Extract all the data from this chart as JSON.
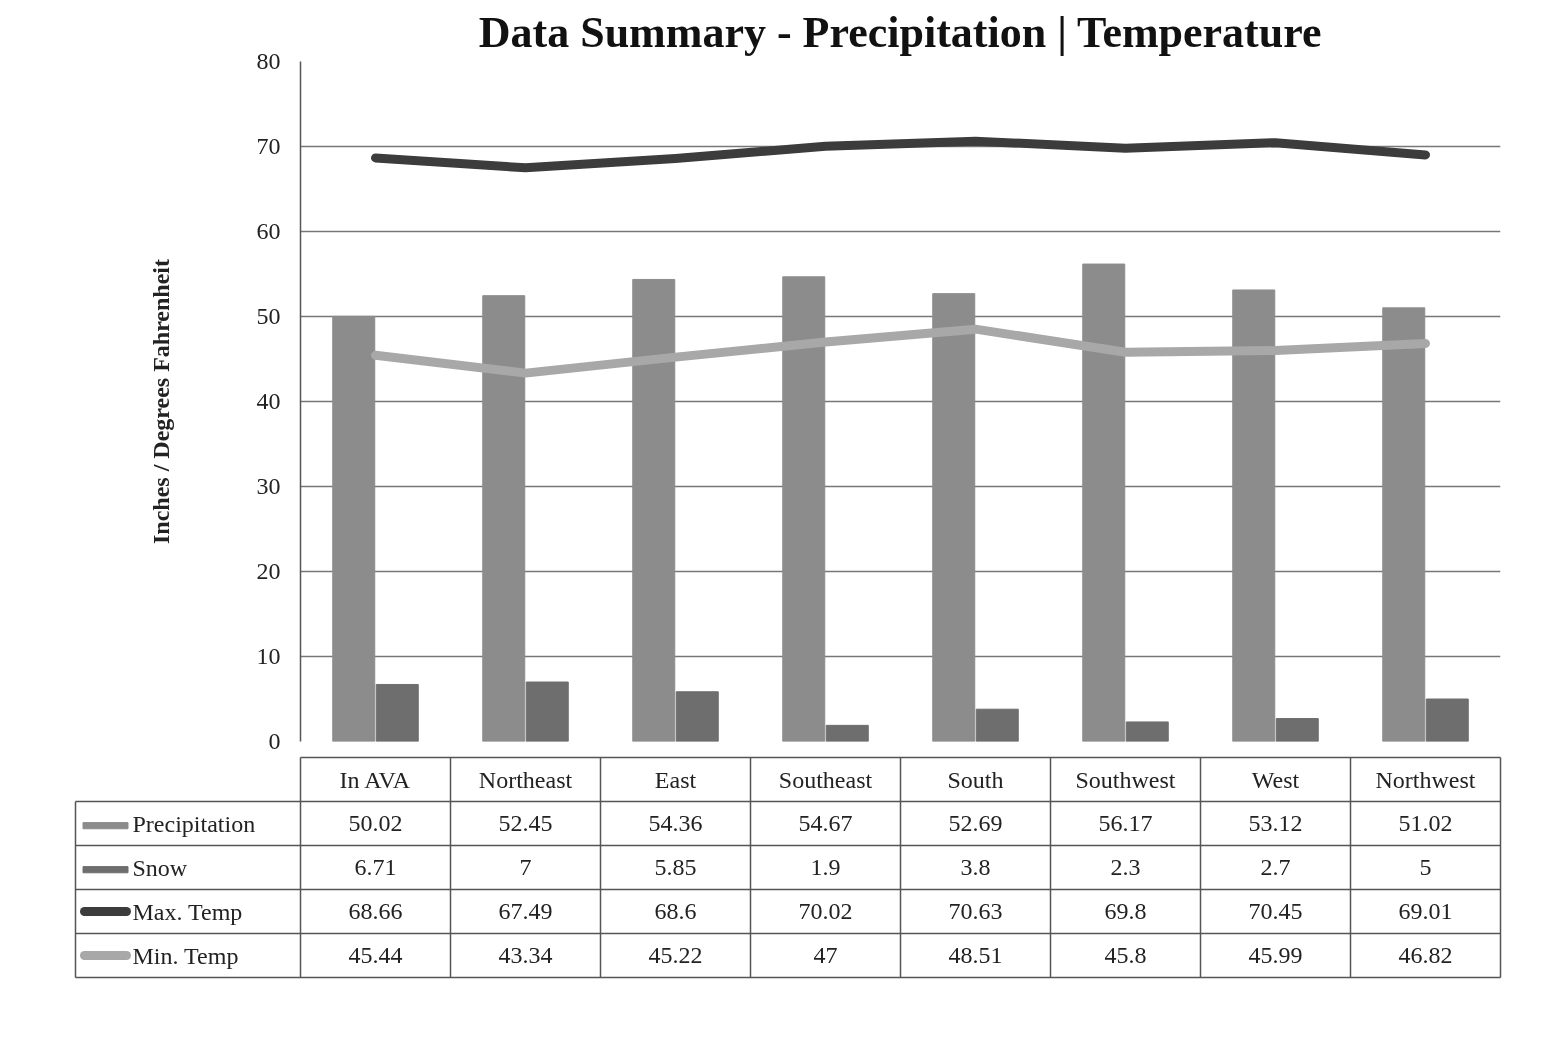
{
  "chart_data": {
    "type": "bar",
    "title": "Data Summary - Precipitation | Temperature",
    "ylabel": "Inches / Degrees Fahrenheit",
    "categories": [
      "In AVA",
      "Northeast",
      "East",
      "Southeast",
      "South",
      "Southwest",
      "West",
      "Northwest"
    ],
    "series": [
      {
        "name": "Precipitation",
        "color": "#8c8c8c",
        "values": [
          50.02,
          52.45,
          54.36,
          54.67,
          52.69,
          56.17,
          53.12,
          51.02
        ]
      },
      {
        "name": "Snow",
        "color": "#6e6e6e",
        "values": [
          6.71,
          7,
          5.85,
          1.9,
          3.8,
          2.3,
          2.7,
          5
        ]
      },
      {
        "name": "Max. Temp",
        "type": "line",
        "color": "#3c3c3c",
        "values": [
          68.66,
          67.49,
          68.6,
          70.02,
          70.63,
          69.8,
          70.45,
          69.01
        ]
      },
      {
        "name": "Min. Temp",
        "type": "line",
        "color": "#a8a8a8",
        "values": [
          45.44,
          43.34,
          45.22,
          47,
          48.51,
          45.8,
          45.99,
          46.82
        ]
      }
    ],
    "ylim": [
      0,
      80
    ],
    "yticks": [
      0,
      10,
      20,
      30,
      40,
      50,
      60,
      70,
      80
    ],
    "grid": "y",
    "legend": "bottom",
    "data_labels": true
  }
}
